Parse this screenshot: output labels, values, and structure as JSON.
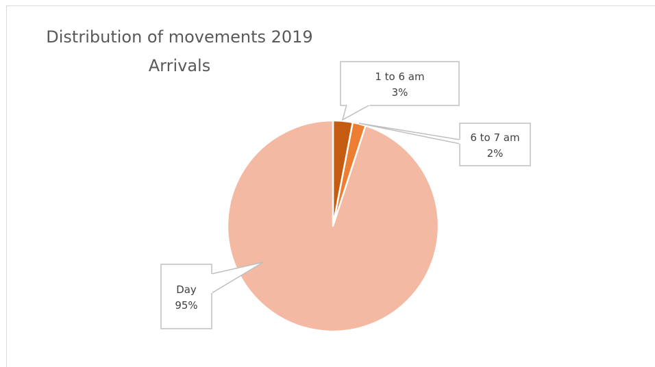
{
  "chart_data": {
    "type": "pie",
    "title": "Distribution of movements 2019",
    "subtitle": "Arrivals",
    "start_angle_deg": 0,
    "slices": [
      {
        "label": "1 to 6 am",
        "value": 3,
        "value_label": "3%",
        "color": "#c55a11"
      },
      {
        "label": "6 to 7 am",
        "value": 2,
        "value_label": "2%",
        "color": "#ed7d31"
      },
      {
        "label": "Day",
        "value": 95,
        "value_label": "95%",
        "color": "#f4b9a3"
      }
    ],
    "legend": "none",
    "data_labels": "callouts"
  }
}
